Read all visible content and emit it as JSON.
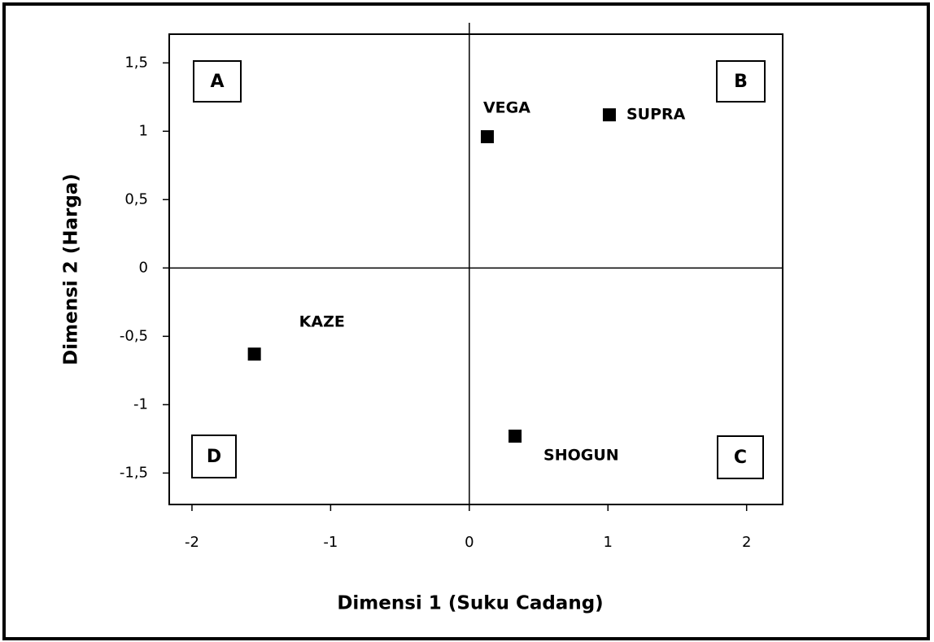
{
  "chart_data": {
    "type": "scatter",
    "xlabel": "Dimensi 1 (Suku Cadang)",
    "ylabel": "Dimensi 2 (Harga)",
    "points": [
      {
        "label": "VEGA",
        "x": 0.13,
        "y": 0.96
      },
      {
        "label": "SUPRA",
        "x": 1.01,
        "y": 1.12
      },
      {
        "label": "KAZE",
        "x": -1.55,
        "y": -0.63
      },
      {
        "label": "SHOGUN",
        "x": 0.33,
        "y": -1.23
      }
    ],
    "color": "#000000",
    "quadrants": [
      "A",
      "B",
      "C",
      "D"
    ],
    "xlim": [
      -2.164,
      2.26
    ],
    "ylim": [
      -1.73,
      1.71
    ],
    "xticks": [
      -2,
      -1,
      0,
      1,
      2
    ],
    "yticks": [
      {
        "value": -1.5,
        "label": "-1,5"
      },
      -1,
      {
        "value": -0.5,
        "label": "-0,5"
      },
      0,
      {
        "value": 0.5,
        "label": "0,5"
      },
      1,
      {
        "value": 1.5,
        "label": "1,5"
      }
    ]
  }
}
